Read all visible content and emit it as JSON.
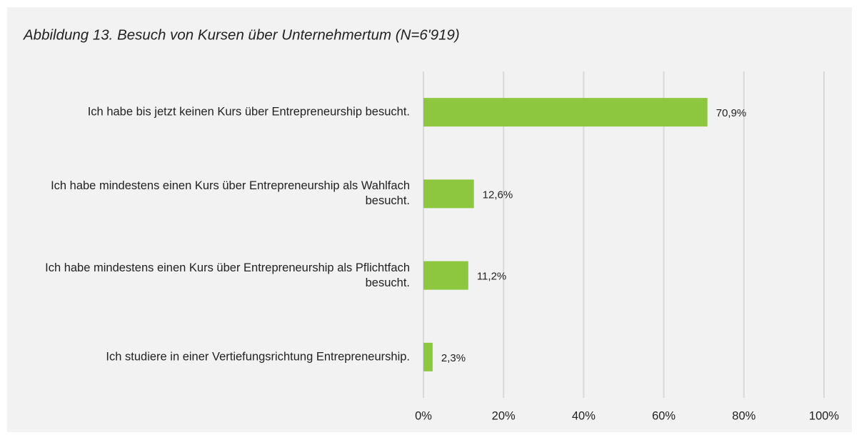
{
  "chart_data": {
    "type": "bar",
    "orientation": "horizontal",
    "title": "Abbildung 13. Besuch von Kursen über Unternehmertum (N=6'919)",
    "categories": [
      "Ich habe bis jetzt keinen Kurs über Entrepreneurship besucht.",
      "Ich habe mindestens einen Kurs über Entrepreneurship als Wahlfach besucht.",
      "Ich habe mindestens einen Kurs über Entrepreneurship als Pflichtfach besucht.",
      "Ich studiere in einer Vertiefungsrichtung Entrepreneurship."
    ],
    "values": [
      70.9,
      12.6,
      11.2,
      2.3
    ],
    "value_labels": [
      "70,9%",
      "12,6%",
      "11,2%",
      "2,3%"
    ],
    "color": "#8dc63f",
    "xlim": [
      0,
      100
    ],
    "xticks": [
      {
        "value": 0,
        "label": "0%"
      },
      {
        "value": 20,
        "label": "20%"
      },
      {
        "value": 40,
        "label": "40%"
      },
      {
        "value": 60,
        "label": "60%"
      },
      {
        "value": 80,
        "label": "80%"
      },
      {
        "value": 100,
        "label": "100%"
      }
    ],
    "grid": true
  }
}
